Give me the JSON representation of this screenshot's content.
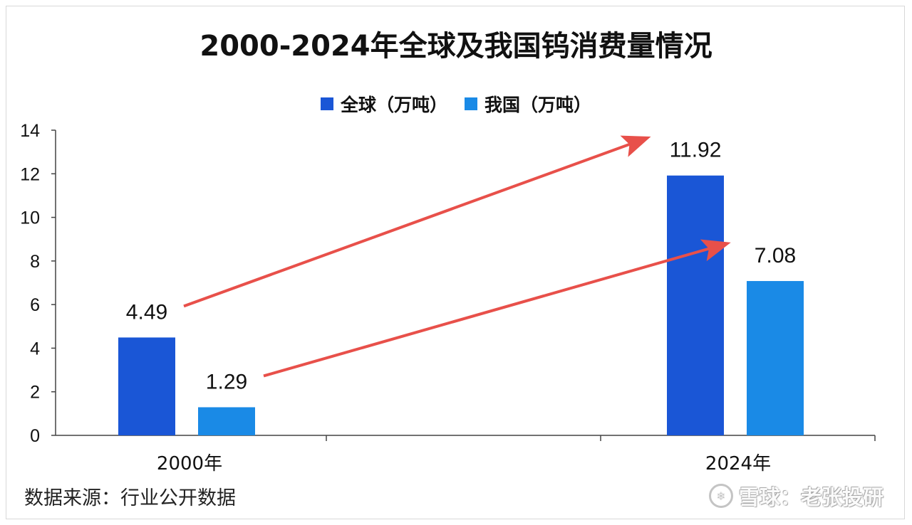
{
  "title": "2000-2024年全球及我国钨消费量情况",
  "legend": [
    {
      "label": "全球（万吨）",
      "color": "#1a56d6"
    },
    {
      "label": "我国（万吨）",
      "color": "#1a8ae6"
    }
  ],
  "source": "数据来源：行业公开数据",
  "watermark": {
    "text": "雪球：老张投研",
    "icon": "snowball-logo-icon"
  },
  "arrow_color": "#e8504a",
  "chart_data": {
    "type": "bar",
    "title": "2000-2024年全球及我国钨消费量情况",
    "categories": [
      "2000年",
      "2024年"
    ],
    "series": [
      {
        "name": "全球（万吨）",
        "values": [
          4.49,
          11.92
        ],
        "color": "#1a56d6"
      },
      {
        "name": "我国（万吨）",
        "values": [
          1.29,
          7.08
        ],
        "color": "#1a8ae6"
      }
    ],
    "data_labels": [
      "4.49",
      "1.29",
      "11.92",
      "7.08"
    ],
    "yticks": [
      "0",
      "2",
      "4",
      "6",
      "8",
      "10",
      "12",
      "14"
    ],
    "ylim": [
      0,
      14
    ],
    "xlabel": "",
    "ylabel": "",
    "grid": false,
    "legend_position": "top-center",
    "annotations": [
      {
        "type": "arrow",
        "from_series": "全球（万吨）",
        "from": "2000年",
        "to": "2024年"
      },
      {
        "type": "arrow",
        "from_series": "我国（万吨）",
        "from": "2000年",
        "to": "2024年"
      }
    ]
  }
}
